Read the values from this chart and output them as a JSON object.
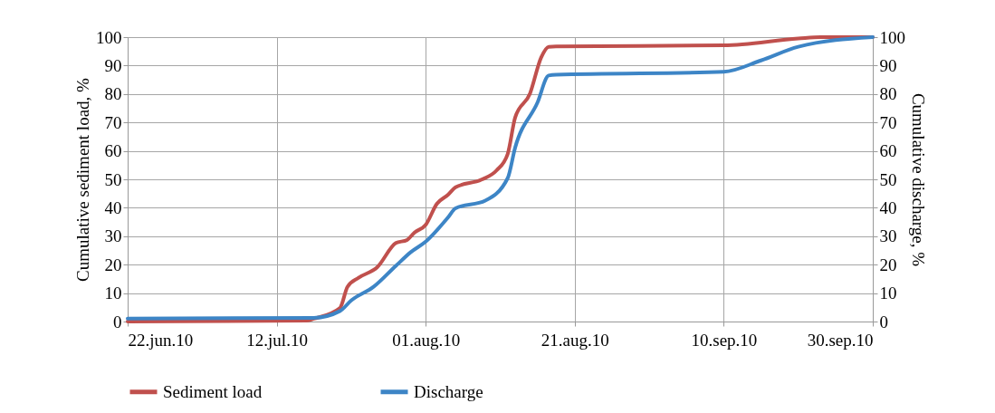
{
  "chart_data": {
    "type": "line",
    "xlabel": null,
    "ylabel": "Cumulative sediment load, %",
    "y2label": "Cumulative discharge, %",
    "xlim": [
      "2010-06-22",
      "2010-09-30"
    ],
    "xticks": [
      {
        "value": "2010-06-22",
        "label": "22.jun.10"
      },
      {
        "value": "2010-07-12",
        "label": "12.jul.10"
      },
      {
        "value": "2010-08-01",
        "label": "01.aug.10"
      },
      {
        "value": "2010-08-21",
        "label": "21.aug.10"
      },
      {
        "value": "2010-09-10",
        "label": "10.sep.10"
      },
      {
        "value": "2010-09-30",
        "label": "30.sep.10"
      }
    ],
    "ylim": [
      0,
      100
    ],
    "yticks": [
      0,
      10,
      20,
      30,
      40,
      50,
      60,
      70,
      80,
      90,
      100
    ],
    "y2lim": [
      0,
      100
    ],
    "y2ticks": [
      0,
      10,
      20,
      30,
      40,
      50,
      60,
      70,
      80,
      90,
      100
    ],
    "grid": true,
    "legend": "bottom",
    "line_style": "solid",
    "marker": "none",
    "series": [
      {
        "name": "Sediment load",
        "color": "#c0504d",
        "x": [
          "2010-06-22",
          "2010-07-16",
          "2010-07-17",
          "2010-07-20T12:00",
          "2010-07-21T12:00",
          "2010-07-23",
          "2010-07-25T12:00",
          "2010-07-28",
          "2010-07-29T12:00",
          "2010-07-30T12:00",
          "2010-08-01",
          "2010-08-02T12:00",
          "2010-08-04",
          "2010-08-05",
          "2010-08-08T12:00",
          "2010-08-10T12:00",
          "2010-08-12",
          "2010-08-13",
          "2010-08-15",
          "2010-08-16T12:00",
          "2010-08-17T12:00",
          "2010-08-18T12:00",
          "2010-09-10",
          "2010-09-20",
          "2010-09-23",
          "2010-09-30"
        ],
        "values": [
          0,
          0.3,
          1.0,
          4.8,
          12.2,
          15.4,
          19.1,
          27.6,
          28.7,
          31.3,
          34.0,
          41.4,
          44.6,
          47.2,
          49.9,
          53.1,
          58.9,
          71.7,
          80.2,
          92.9,
          96.6,
          96.7,
          97.1,
          99.5,
          100,
          100
        ]
      },
      {
        "name": "Discharge",
        "color": "#3d85c6",
        "axis": "y2",
        "x": [
          "2010-06-22",
          "2010-07-17",
          "2010-07-20T12:00",
          "2010-07-22",
          "2010-07-25",
          "2010-07-28",
          "2010-07-30",
          "2010-08-01",
          "2010-08-04",
          "2010-08-05",
          "2010-08-09",
          "2010-08-12",
          "2010-08-13",
          "2010-08-16",
          "2010-08-17T12:00",
          "2010-08-18T12:00",
          "2010-09-10",
          "2010-09-15",
          "2010-09-20",
          "2010-09-30"
        ],
        "values": [
          1.0,
          1.3,
          3.7,
          7.4,
          12.2,
          19.6,
          24.4,
          28.1,
          36.6,
          39.8,
          42.5,
          50.4,
          61.1,
          77.0,
          86.5,
          86.8,
          87.8,
          91.8,
          96.6,
          100
        ]
      }
    ]
  }
}
